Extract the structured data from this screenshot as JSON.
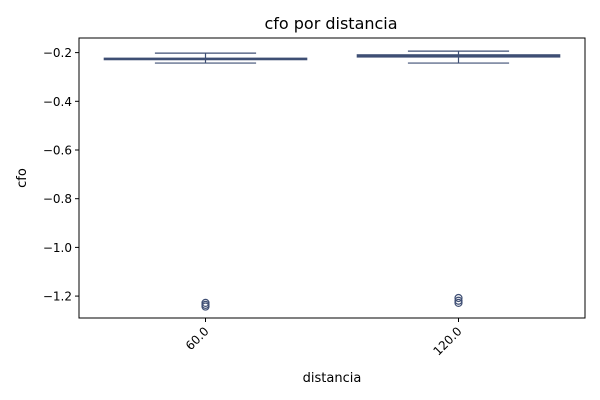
{
  "chart_data": {
    "type": "box",
    "title": "cfo por distancia",
    "xlabel": "distancia",
    "ylabel": "cfo",
    "ylim": [
      -1.29,
      -0.14
    ],
    "yticks": [
      -0.2,
      -0.4,
      -0.6,
      -0.8,
      -1.0,
      -1.2
    ],
    "ytick_labels": [
      "−0.2",
      "−0.4",
      "−0.6",
      "−0.8",
      "−1.0",
      "−1.2"
    ],
    "categories": [
      "60.0",
      "120.0"
    ],
    "boxes": [
      {
        "category": "60.0",
        "whisker_low": -0.243,
        "q1": -0.229,
        "median": -0.226,
        "q3": -0.223,
        "whisker_high": -0.202,
        "outliers": [
          -1.228,
          -1.236,
          -1.243
        ]
      },
      {
        "category": "120.0",
        "whisker_low": -0.243,
        "q1": -0.218,
        "median": -0.214,
        "q3": -0.209,
        "whisker_high": -0.194,
        "outliers": [
          -1.208,
          -1.219,
          -1.228
        ]
      }
    ],
    "box_color": "#3f4f74",
    "grid": false,
    "xtick_rotation": 45
  }
}
